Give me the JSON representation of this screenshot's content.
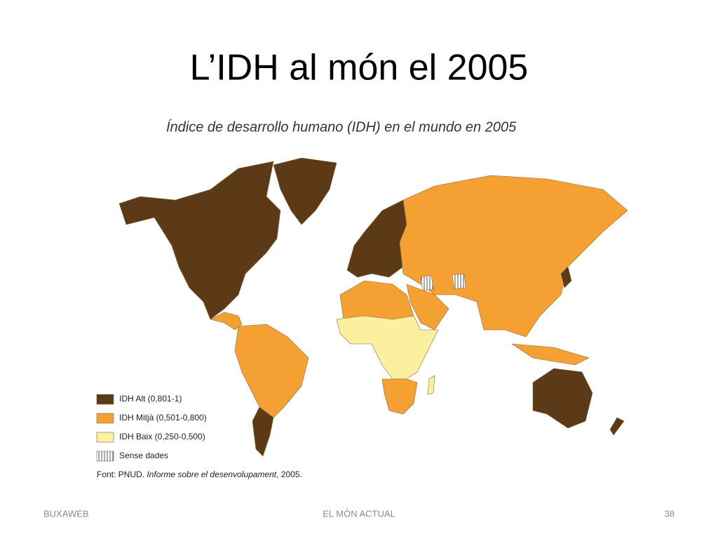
{
  "slide_title": "L’IDH al món el 2005",
  "map": {
    "title": "Índice de desarrollo humano (IDH) en el mundo en 2005",
    "legend": [
      {
        "label": "IDH Alt (0,801-1)",
        "color": "#5c3a17"
      },
      {
        "label": "IDH Mitjà (0,501-0,800)",
        "color": "#f5a033"
      },
      {
        "label": "IDH Baix (0,250-0,500)",
        "color": "#fbf0a0"
      },
      {
        "label": "Sense dades",
        "color": "#ffffff",
        "pattern": "hatch"
      }
    ],
    "source": {
      "prefix": "Font: PNUD.",
      "work": "Informe sobre el desenvolupament",
      "suffix": ", 2005."
    }
  },
  "footer": {
    "left": "BUXAWEB",
    "center": "EL MÓN ACTUAL",
    "right": "38"
  }
}
